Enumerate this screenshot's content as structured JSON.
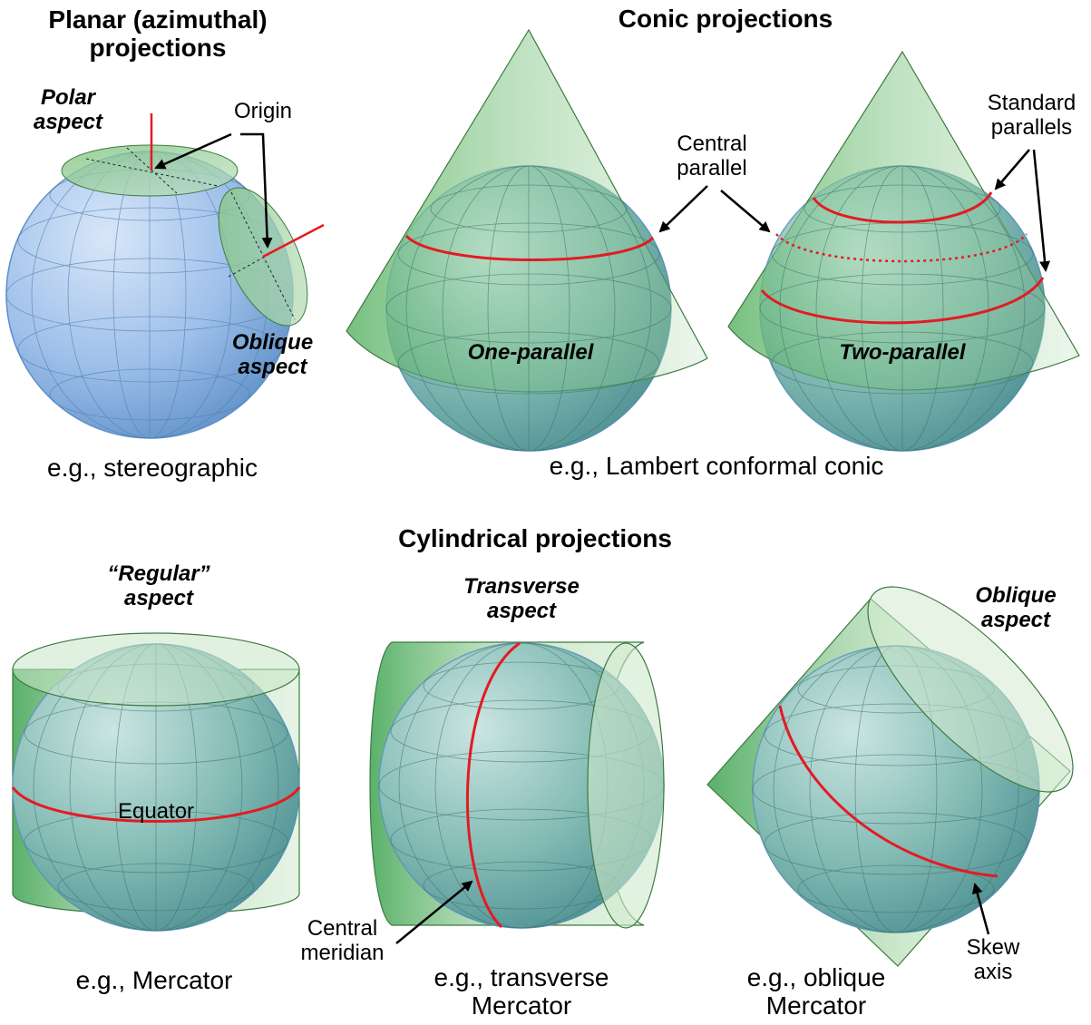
{
  "colors": {
    "globe_blue": "#9fc0ea",
    "globe_edge": "#5d8fc7",
    "surface_green": "#3fa64f",
    "highlight_red": "#e31b23"
  },
  "planar": {
    "title_line1": "Planar (azimuthal)",
    "title_line2": "projections",
    "polar_line1": "Polar",
    "polar_line2": "aspect",
    "origin": "Origin",
    "oblique_line1": "Oblique",
    "oblique_line2": "aspect",
    "example": "e.g., stereographic"
  },
  "conic": {
    "title": "Conic projections",
    "central_line1": "Central",
    "central_line2": "parallel",
    "standard_line1": "Standard",
    "standard_line2": "parallels",
    "one_parallel": "One-parallel",
    "two_parallel": "Two-parallel",
    "example": "e.g., Lambert conformal conic"
  },
  "cylindrical": {
    "title": "Cylindrical projections",
    "regular_line1": "“Regular”",
    "regular_line2": "aspect",
    "equator": "Equator",
    "regular_example": "e.g., Mercator",
    "transverse_line1": "Transverse",
    "transverse_line2": "aspect",
    "central_meridian_line1": "Central",
    "central_meridian_line2": "meridian",
    "transverse_example_line1": "e.g., transverse",
    "transverse_example_line2": "Mercator",
    "oblique_line1": "Oblique",
    "oblique_line2": "aspect",
    "skew_line1": "Skew",
    "skew_line2": "axis",
    "oblique_example_line1": "e.g., oblique",
    "oblique_example_line2": "Mercator"
  }
}
